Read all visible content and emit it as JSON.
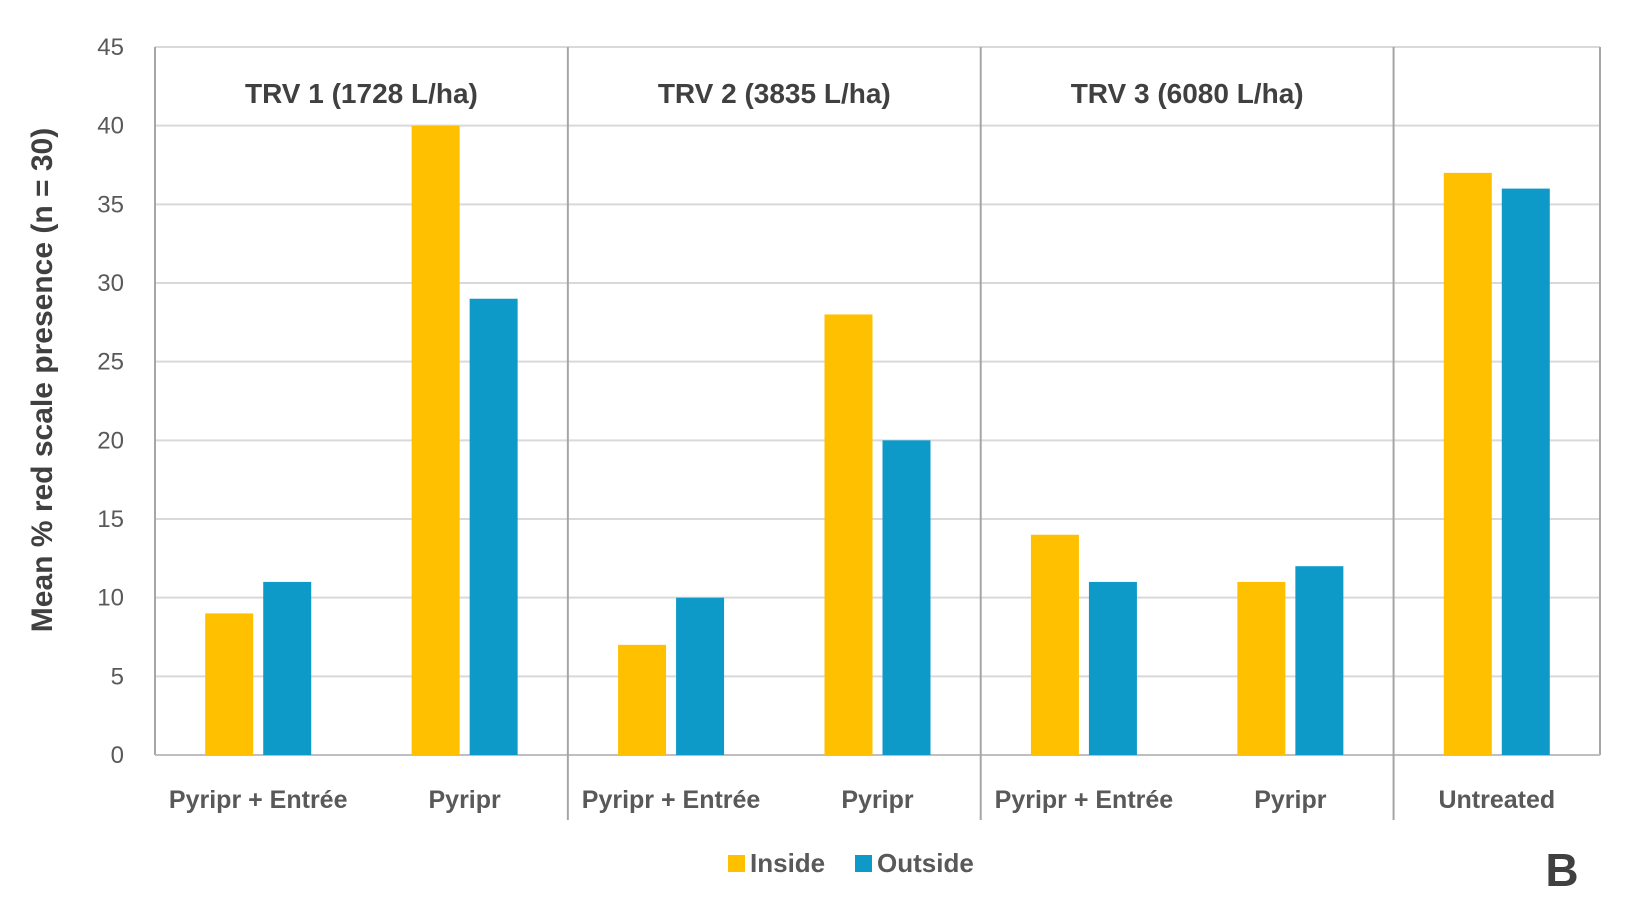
{
  "chart_data": {
    "type": "bar",
    "title": "",
    "ylabel": "Mean % red scale presence (n = 30)",
    "xlabel": "",
    "ylim": [
      0,
      45
    ],
    "yticks": [
      0,
      5,
      10,
      15,
      20,
      25,
      30,
      35,
      40,
      45
    ],
    "grid": true,
    "legend_position": "bottom-center",
    "panel_label": "B",
    "groups": [
      {
        "title": "TRV 1 (1728 L/ha)",
        "categories": [
          {
            "label": "Pyripr + Entrée",
            "values": [
              9,
              11
            ]
          },
          {
            "label": "Pyripr",
            "values": [
              40,
              29
            ]
          }
        ]
      },
      {
        "title": "TRV 2 (3835 L/ha)",
        "categories": [
          {
            "label": "Pyripr + Entrée",
            "values": [
              7,
              10
            ]
          },
          {
            "label": "Pyripr",
            "values": [
              28,
              20
            ]
          }
        ]
      },
      {
        "title": "TRV 3 (6080 L/ha)",
        "categories": [
          {
            "label": "Pyripr + Entrée",
            "values": [
              14,
              11
            ]
          },
          {
            "label": "Pyripr",
            "values": [
              11,
              12
            ]
          }
        ]
      },
      {
        "title": "",
        "categories": [
          {
            "label": "Untreated",
            "values": [
              37,
              36
            ]
          }
        ]
      }
    ],
    "series": [
      {
        "name": "Inside",
        "color": "#FFC000"
      },
      {
        "name": "Outside",
        "color": "#0E9AC8"
      }
    ]
  }
}
